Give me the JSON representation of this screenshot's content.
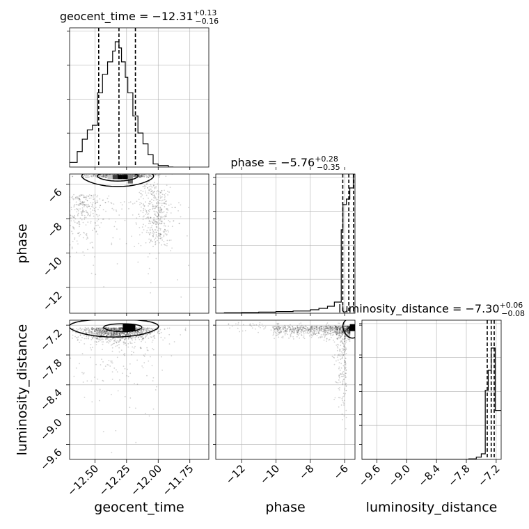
{
  "colors": {
    "ink": "#000000",
    "grid": "#b0b0b0",
    "background": "#ffffff"
  },
  "chart_data": {
    "type": "corner",
    "parameters": [
      "geocent_time",
      "phase",
      "luminosity_distance"
    ],
    "axis_labels": {
      "x": [
        "geocent_time",
        "phase",
        "luminosity_distance"
      ],
      "y": [
        "phase",
        "luminosity_distance"
      ]
    },
    "ranges": {
      "geocent_time": [
        -12.7,
        -11.6
      ],
      "phase": [
        -13.5,
        -5.4
      ],
      "luminosity_distance": [
        -9.9,
        -7.1
      ]
    },
    "ticks": {
      "geocent_time": [
        -12.5,
        -12.25,
        -12.0,
        -11.75
      ],
      "phase": [
        -12,
        -10,
        -8,
        -6
      ],
      "luminosity_distance": [
        -9.6,
        -9.0,
        -8.4,
        -7.8,
        -7.2
      ]
    },
    "tick_labels": {
      "geocent_time": [
        "−12.50",
        "−12.25",
        "−12.00",
        "−11.75"
      ],
      "phase": [
        "−12",
        "−10",
        "−8",
        "−6"
      ],
      "luminosity_distance": [
        "−9.6",
        "−9.0",
        "−8.4",
        "−7.8",
        "−7.2"
      ]
    },
    "titles": [
      {
        "param": "geocent_time",
        "median": "−12.31",
        "plus": "+0.13",
        "minus": "−0.16"
      },
      {
        "param": "phase",
        "median": "−5.76",
        "plus": "+0.28",
        "minus": "−0.35"
      },
      {
        "param": "luminosity_distance",
        "median": "−7.30",
        "plus": "+0.06",
        "minus": "−0.08"
      }
    ],
    "quantiles": {
      "geocent_time": [
        -12.47,
        -12.31,
        -12.18
      ],
      "phase": [
        -6.11,
        -5.76,
        -5.48
      ],
      "luminosity_distance": [
        -7.38,
        -7.3,
        -7.24
      ]
    },
    "histograms": {
      "geocent_time": {
        "bins": [
          -12.7,
          -12.64,
          -12.6,
          -12.56,
          -12.52,
          -12.48,
          -12.44,
          -12.4,
          -12.36,
          -12.34,
          -12.31,
          -12.29,
          -12.26,
          -12.24,
          -12.2,
          -12.16,
          -12.12,
          -12.08,
          -12.04,
          -12.0,
          -11.96,
          -11.92,
          -11.88
        ],
        "counts": [
          3,
          10,
          18,
          24,
          27,
          48,
          60,
          68,
          75,
          81,
          77,
          68,
          58,
          48,
          33,
          22,
          15,
          8,
          2,
          1,
          1,
          0
        ]
      },
      "phase": {
        "bins": [
          -13.5,
          -13.0,
          -12.0,
          -11.0,
          -10.0,
          -9.0,
          -8.0,
          -7.5,
          -7.0,
          -6.6,
          -6.2,
          -6.1,
          -5.9,
          -5.7,
          -5.5,
          -5.4
        ],
        "counts": [
          0,
          0.3,
          0.5,
          0.8,
          1.2,
          1.6,
          2.5,
          3.5,
          5,
          8,
          60,
          78,
          82,
          90,
          100
        ]
      },
      "luminosity_distance": {
        "bins": [
          -9.9,
          -7.75,
          -7.6,
          -7.5,
          -7.42,
          -7.36,
          -7.3,
          -7.26,
          -7.22,
          -7.18,
          -7.1
        ],
        "counts": [
          0,
          0.5,
          2,
          5,
          62,
          80,
          100,
          100,
          44,
          44
        ]
      }
    },
    "histogram_ylim": {
      "geocent_time": [
        0,
        90
      ],
      "phase": [
        0,
        100
      ],
      "luminosity_distance": [
        0,
        125
      ]
    },
    "grid": true
  }
}
